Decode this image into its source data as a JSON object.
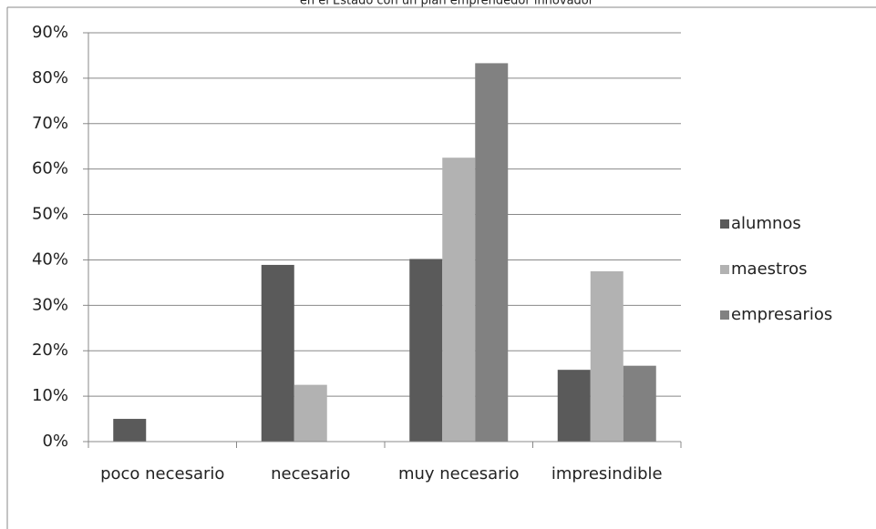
{
  "chart_data": {
    "type": "bar",
    "title": "en el Estado con un plan emprendedor innovador",
    "categories": [
      "poco necesario",
      "necesario",
      "muy necesario",
      "impresindible"
    ],
    "series": [
      {
        "name": "alumnos",
        "color": "#5a5a5a",
        "values": [
          5,
          38.9,
          40.2,
          15.8
        ]
      },
      {
        "name": "maestros",
        "color": "#b2b2b2",
        "values": [
          0,
          12.5,
          62.5,
          37.5
        ]
      },
      {
        "name": "empresarios",
        "color": "#818181",
        "values": [
          0,
          0,
          83.3,
          16.7
        ]
      }
    ],
    "ylim": [
      0,
      90
    ],
    "yticks": [
      {
        "value": 0,
        "label": "0%"
      },
      {
        "value": 10,
        "label": "10%"
      },
      {
        "value": 20,
        "label": "20%"
      },
      {
        "value": 30,
        "label": "30%"
      },
      {
        "value": 40,
        "label": "40%"
      },
      {
        "value": 50,
        "label": "50%"
      },
      {
        "value": 60,
        "label": "60%"
      },
      {
        "value": 70,
        "label": "70%"
      },
      {
        "value": 80,
        "label": "80%"
      },
      {
        "value": 90,
        "label": "90%"
      }
    ],
    "grid": true,
    "legend": "right"
  }
}
